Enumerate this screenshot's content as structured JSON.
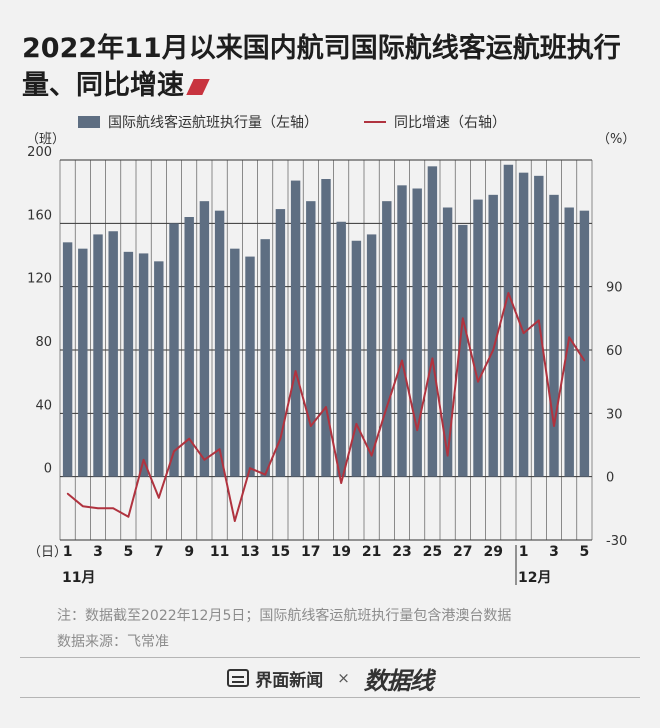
{
  "title": "2022年11月以来国内航司国际航线客运航班执行量、同比增速",
  "chart_data": {
    "type": "bar+line",
    "categories": [
      "1",
      "2",
      "3",
      "4",
      "5",
      "6",
      "7",
      "8",
      "9",
      "10",
      "11",
      "12",
      "13",
      "14",
      "15",
      "16",
      "17",
      "18",
      "19",
      "20",
      "21",
      "22",
      "23",
      "24",
      "25",
      "26",
      "27",
      "28",
      "29",
      "30",
      "1",
      "2",
      "3",
      "4",
      "5"
    ],
    "month_labels": [
      "11月",
      "12月"
    ],
    "x_unit": "（日）",
    "xtick_labels": [
      "1",
      "3",
      "5",
      "7",
      "9",
      "11",
      "13",
      "15",
      "17",
      "19",
      "21",
      "23",
      "25",
      "27",
      "29",
      "1",
      "3",
      "5"
    ],
    "series": [
      {
        "name": "国际航线客运航班执行量（左轴）",
        "type": "bar",
        "axis": "left",
        "color": "#5e6e82",
        "values": [
          148,
          144,
          153,
          155,
          142,
          141,
          136,
          160,
          164,
          174,
          168,
          144,
          139,
          150,
          169,
          187,
          174,
          188,
          161,
          149,
          153,
          174,
          184,
          182,
          196,
          170,
          159,
          175,
          178,
          197,
          192,
          190,
          178,
          170,
          168
        ]
      },
      {
        "name": "同比增速（右轴）",
        "type": "line",
        "axis": "right",
        "color": "#b0333f",
        "values": [
          -8,
          -14,
          -15,
          -15,
          -19,
          8,
          -10,
          12,
          18,
          8,
          13,
          -21,
          4,
          1,
          18,
          50,
          24,
          33,
          -3,
          25,
          10,
          33,
          55,
          22,
          56,
          10,
          75,
          45,
          60,
          87,
          68,
          74,
          24,
          66,
          55
        ]
      }
    ],
    "left_axis": {
      "unit": "（班）",
      "ylim": [
        -40,
        200
      ],
      "ticks": [
        "0",
        "40",
        "80",
        "120",
        "160",
        "200"
      ]
    },
    "right_axis": {
      "unit": "（%）",
      "ylim": [
        -30,
        150
      ],
      "ticks": [
        "-30",
        "0",
        "30",
        "60",
        "90"
      ]
    },
    "legend_position": "top",
    "grid": true
  },
  "notes": {
    "note": "注：数据截至2022年12月5日；国际航线客运航班执行量包含港澳台数据",
    "source": "数据来源：飞常准"
  },
  "footer": {
    "brand_1": "界面新闻",
    "separator": "×",
    "brand_2": "数据线"
  }
}
